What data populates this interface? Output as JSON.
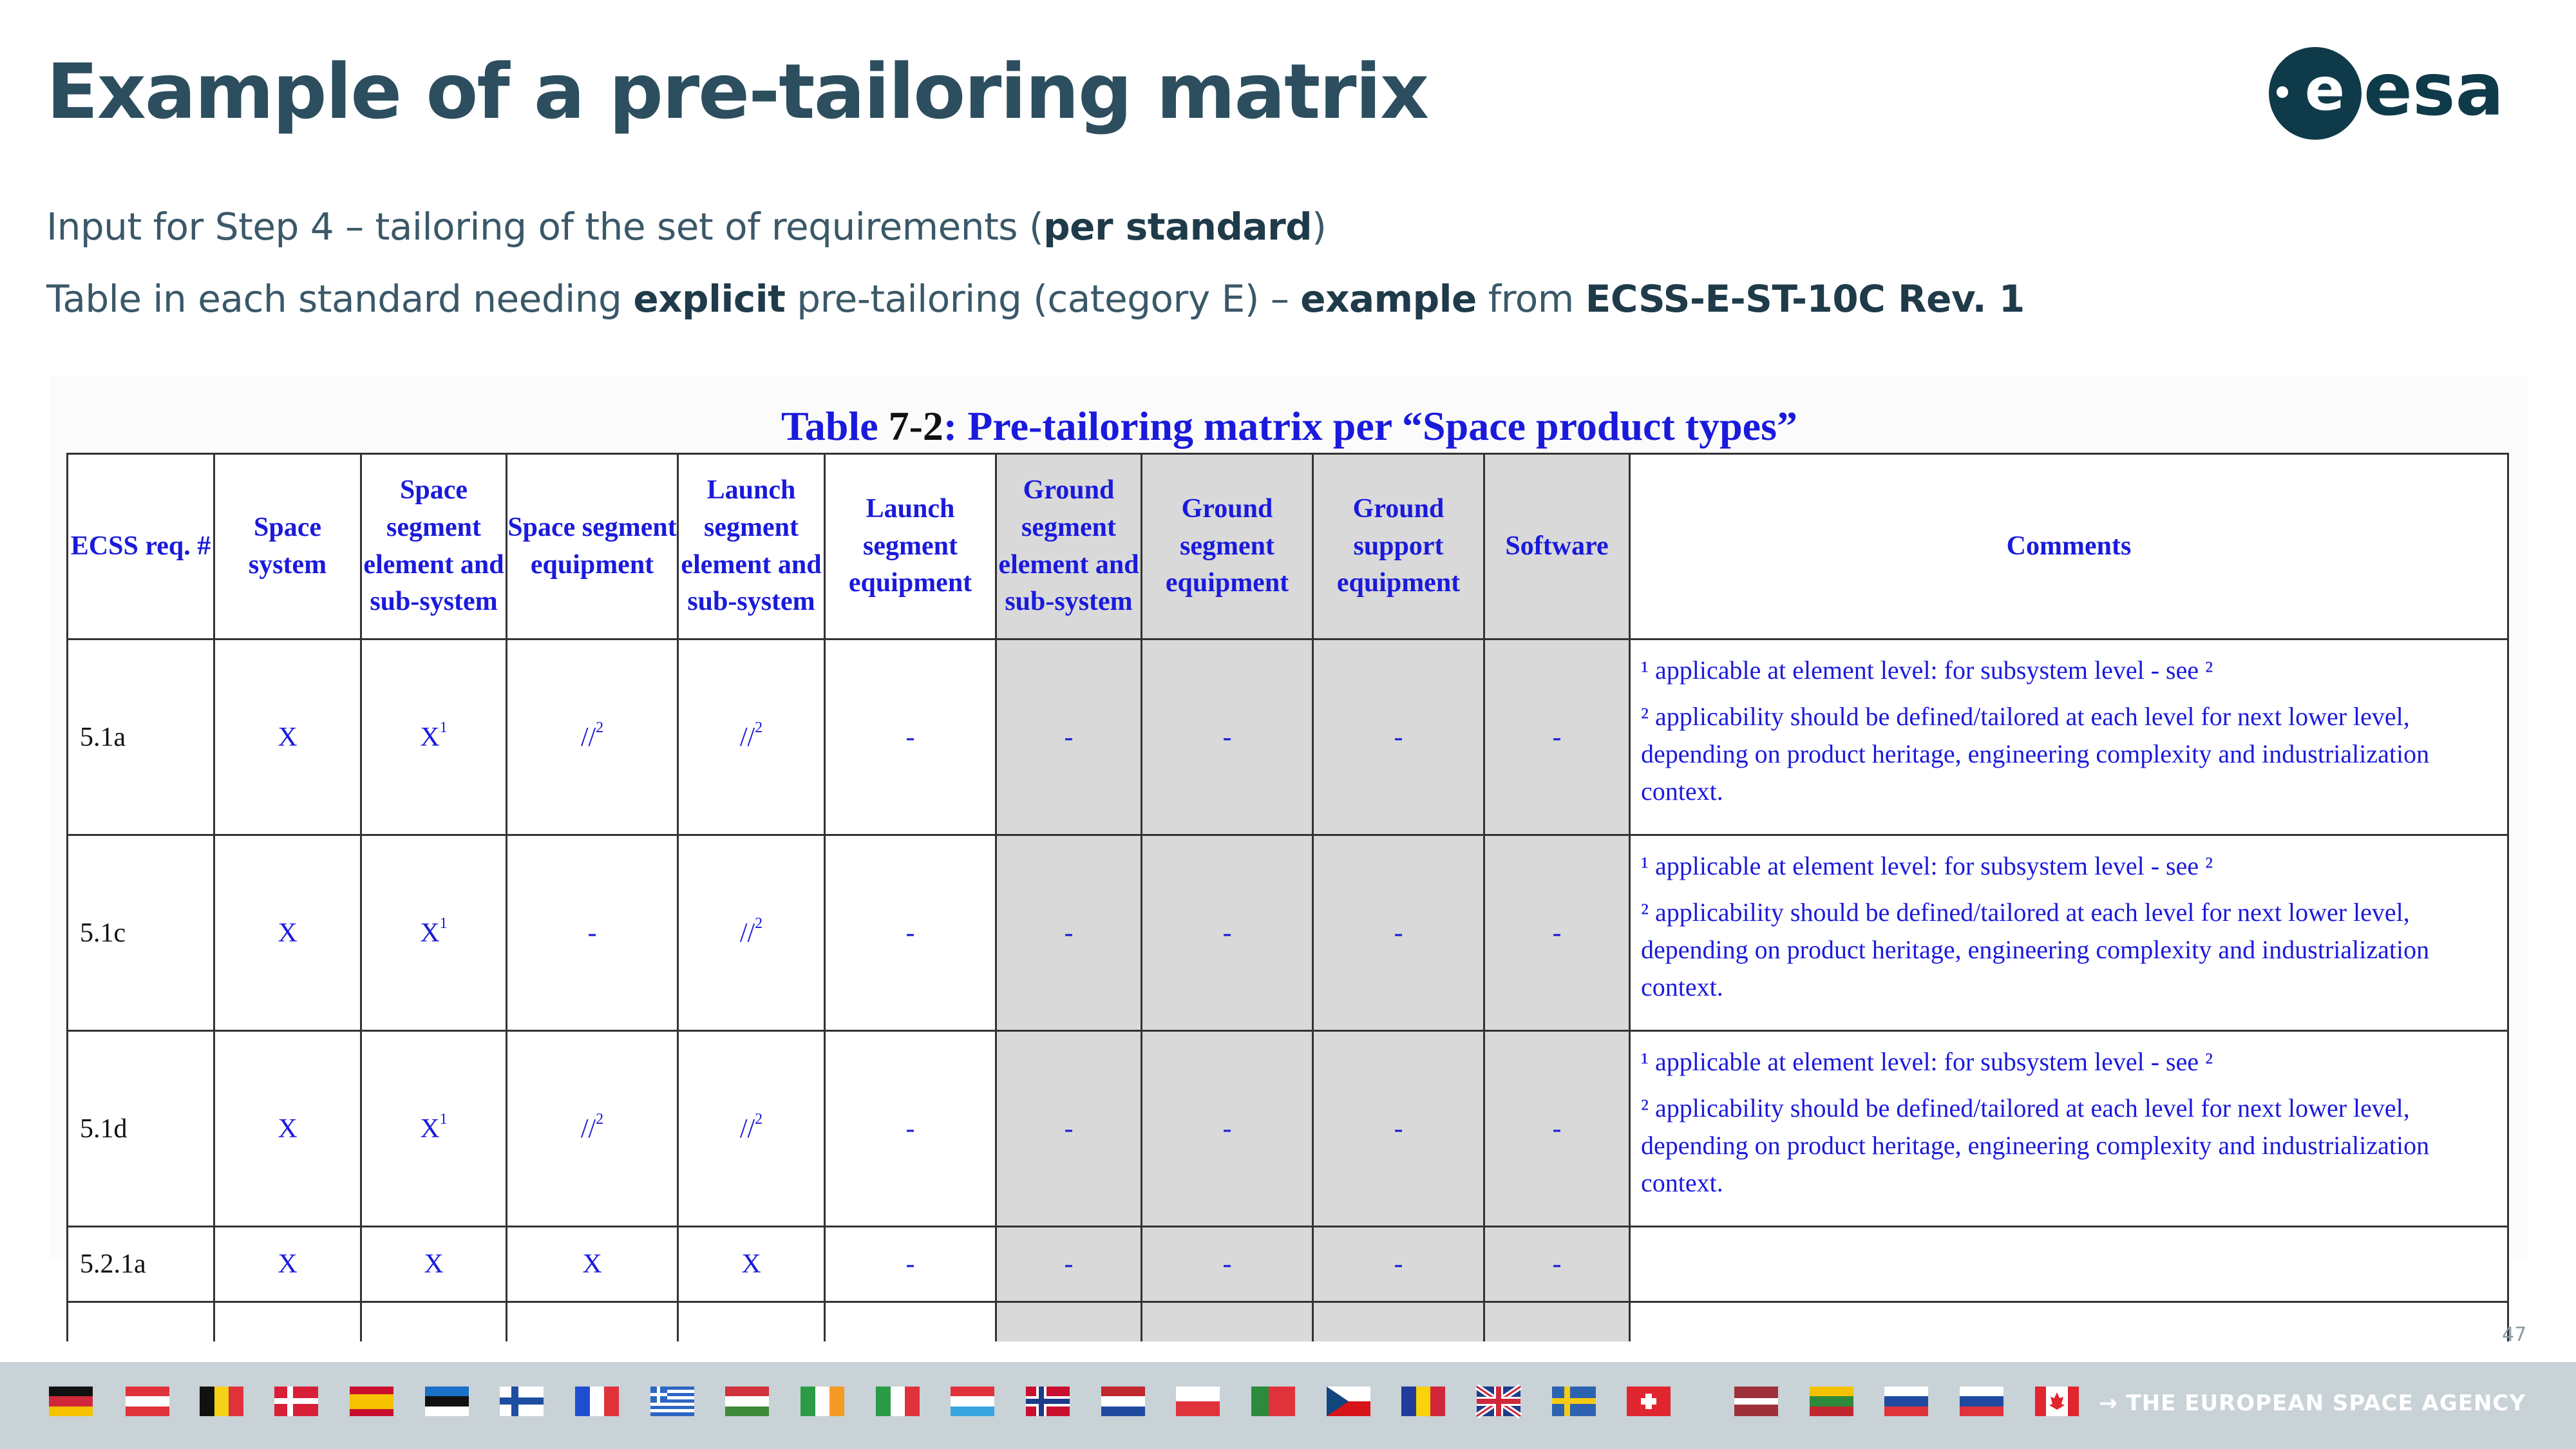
{
  "slide": {
    "title": "Example of a pre-tailoring matrix",
    "subtitle_1": {
      "text_a": "Input for Step 4 – tailoring of the set of requirements (",
      "bold_a": "per standard",
      "text_b": ")"
    },
    "subtitle_2": {
      "text_a": "Table in each standard needing ",
      "bold_a": "explicit",
      "text_b": " pre-tailoring (category E) – ",
      "bold_b": "example",
      "text_c": " from ",
      "bold_c": "ECSS-E-ST-10C Rev. 1"
    },
    "page_number": "47",
    "logo_text": "esa",
    "agency_label": "→ THE EUROPEAN SPACE AGENCY"
  },
  "table": {
    "caption_prefix": "Table ",
    "caption_number": "7-2",
    "caption_text": ": Pre-tailoring matrix per “Space product types”",
    "headers": [
      "ECSS req. #",
      "Space system",
      "Space segment element and sub-system",
      "Space segment equipment",
      "Launch segment element and sub-system",
      "Launch segment equipment",
      "Ground segment element and sub-system",
      "Ground segment equipment",
      "Ground support equipment",
      "Software",
      "Comments"
    ],
    "rows": [
      {
        "req": "5.1a",
        "cells": [
          "X",
          "X",
          "//",
          "//",
          "-",
          "-",
          "-",
          "-",
          "-"
        ],
        "sup": [
          "",
          "1",
          "2",
          "2",
          "",
          "",
          "",
          "",
          ""
        ],
        "comment_1": "¹ applicable at element level: for subsystem level - see ²",
        "comment_2": "² applicability should be defined/tailored at each level for next lower level, depending on product heritage, engineering complexity and industrialization context."
      },
      {
        "req": "5.1c",
        "cells": [
          "X",
          "X",
          "-",
          "//",
          "-",
          "-",
          "-",
          "-",
          "-"
        ],
        "sup": [
          "",
          "1",
          "",
          "2",
          "",
          "",
          "",
          "",
          ""
        ],
        "comment_1": "¹ applicable at element level: for subsystem level - see ²",
        "comment_2": "² applicability should be defined/tailored at each level for next lower level, depending on product heritage, engineering complexity and industrialization context."
      },
      {
        "req": "5.1d",
        "cells": [
          "X",
          "X",
          "//",
          "//",
          "-",
          "-",
          "-",
          "-",
          "-"
        ],
        "sup": [
          "",
          "1",
          "2",
          "2",
          "",
          "",
          "",
          "",
          ""
        ],
        "comment_1": "¹ applicable at element level: for subsystem level - see ²",
        "comment_2": "² applicability should be defined/tailored at each level for next lower level, depending on product heritage, engineering complexity and industrialization context."
      },
      {
        "req": "5.2.1a",
        "cells": [
          "X",
          "X",
          "X",
          "X",
          "-",
          "-",
          "-",
          "-",
          "-"
        ],
        "sup": [
          "",
          "",
          "",
          "",
          "",
          "",
          "",
          "",
          ""
        ],
        "comment_1": "",
        "comment_2": ""
      }
    ]
  },
  "flags": [
    "germany",
    "austria",
    "belgium",
    "denmark",
    "spain",
    "estonia",
    "finland",
    "france",
    "greece",
    "hungary",
    "ireland",
    "italy",
    "luxembourg",
    "norway",
    "netherlands",
    "poland",
    "portugal",
    "czech-republic",
    "romania",
    "united-kingdom",
    "sweden",
    "switzerland",
    "latvia",
    "lithuania",
    "slovakia",
    "slovenia",
    "canada"
  ],
  "colors": {
    "title": "#2c4e5e",
    "table_text": "#1a1adc",
    "shaded_columns": "#d9d9d9",
    "footer_bar": "#c8d2d7",
    "logo": "#0f3a4a"
  }
}
